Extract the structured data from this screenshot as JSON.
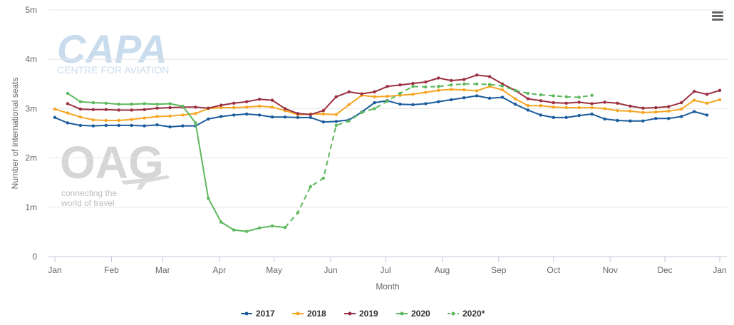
{
  "chart_data": {
    "type": "line",
    "xlabel": "Month",
    "ylabel": "Number of international seats",
    "x_ticks": [
      "Jan",
      "Feb",
      "Mar",
      "Apr",
      "May",
      "Jun",
      "Jul",
      "Aug",
      "Sep",
      "Oct",
      "Nov",
      "Dec",
      "Jan"
    ],
    "y_ticks": [
      "0",
      "1m",
      "2m",
      "3m",
      "4m",
      "5m"
    ],
    "ylim": [
      0,
      5000000
    ],
    "x_unit": "week of year",
    "xlim": [
      1,
      53
    ],
    "grid": "horizontal",
    "legend_position": "bottom-center",
    "series": [
      {
        "name": "2017",
        "color": "#1a5b9c",
        "dashed": false,
        "x": [
          1,
          2,
          3,
          4,
          5,
          6,
          7,
          8,
          9,
          10,
          11,
          12,
          13,
          14,
          15,
          16,
          17,
          18,
          19,
          20,
          21,
          22,
          23,
          24,
          25,
          26,
          27,
          28,
          29,
          30,
          31,
          32,
          33,
          34,
          35,
          36,
          37,
          38,
          39,
          40,
          41,
          42,
          43,
          44,
          45,
          46,
          47,
          48,
          49,
          50,
          51,
          52
        ],
        "values": [
          2820000,
          2710000,
          2660000,
          2650000,
          2660000,
          2660000,
          2660000,
          2650000,
          2670000,
          2630000,
          2650000,
          2650000,
          2790000,
          2840000,
          2870000,
          2890000,
          2870000,
          2830000,
          2830000,
          2820000,
          2820000,
          2730000,
          2740000,
          2770000,
          2930000,
          3120000,
          3160000,
          3090000,
          3080000,
          3100000,
          3140000,
          3180000,
          3220000,
          3260000,
          3210000,
          3230000,
          3090000,
          2970000,
          2870000,
          2820000,
          2820000,
          2860000,
          2890000,
          2790000,
          2760000,
          2750000,
          2750000,
          2800000,
          2800000,
          2840000,
          2940000,
          2870000
        ]
      },
      {
        "name": "2018",
        "color": "#f5a623",
        "dashed": false,
        "x": [
          1,
          2,
          3,
          4,
          5,
          6,
          7,
          8,
          9,
          10,
          11,
          12,
          13,
          14,
          15,
          16,
          17,
          18,
          19,
          20,
          21,
          22,
          23,
          24,
          25,
          26,
          27,
          28,
          29,
          30,
          31,
          32,
          33,
          34,
          35,
          36,
          37,
          38,
          39,
          40,
          41,
          42,
          43,
          44,
          45,
          46,
          47,
          48,
          49,
          50,
          51,
          52,
          53
        ],
        "values": [
          2990000,
          2910000,
          2830000,
          2770000,
          2760000,
          2760000,
          2780000,
          2810000,
          2840000,
          2850000,
          2870000,
          2900000,
          3000000,
          3020000,
          3020000,
          3030000,
          3050000,
          3030000,
          2960000,
          2880000,
          2890000,
          2890000,
          2880000,
          3080000,
          3270000,
          3240000,
          3250000,
          3270000,
          3290000,
          3330000,
          3370000,
          3390000,
          3380000,
          3360000,
          3450000,
          3380000,
          3200000,
          3060000,
          3060000,
          3030000,
          3020000,
          3020000,
          3020000,
          3000000,
          2960000,
          2950000,
          2920000,
          2930000,
          2950000,
          2990000,
          3170000,
          3110000,
          3180000
        ]
      },
      {
        "name": "2019",
        "color": "#9b2f3f",
        "dashed": false,
        "x": [
          2,
          3,
          4,
          5,
          6,
          7,
          8,
          9,
          10,
          11,
          12,
          13,
          14,
          15,
          16,
          17,
          18,
          19,
          20,
          21,
          22,
          23,
          24,
          25,
          26,
          27,
          28,
          29,
          30,
          31,
          32,
          33,
          34,
          35,
          36,
          37,
          38,
          39,
          40,
          41,
          42,
          43,
          44,
          45,
          46,
          47,
          48,
          49,
          50,
          51,
          52,
          53
        ],
        "values": [
          3100000,
          2990000,
          2980000,
          2980000,
          2970000,
          2970000,
          2980000,
          3010000,
          3020000,
          3030000,
          3030000,
          3010000,
          3070000,
          3110000,
          3140000,
          3190000,
          3170000,
          3000000,
          2900000,
          2880000,
          2960000,
          3240000,
          3340000,
          3300000,
          3340000,
          3450000,
          3480000,
          3510000,
          3540000,
          3620000,
          3570000,
          3590000,
          3680000,
          3650000,
          3500000,
          3370000,
          3200000,
          3160000,
          3120000,
          3110000,
          3130000,
          3100000,
          3130000,
          3110000,
          3050000,
          3010000,
          3020000,
          3040000,
          3120000,
          3350000,
          3290000,
          3370000
        ]
      },
      {
        "name": "2020",
        "color": "#5cb85c",
        "dashed": false,
        "x": [
          2,
          3,
          4,
          5,
          6,
          7,
          8,
          9,
          10,
          11,
          12,
          13,
          14,
          15,
          16,
          17,
          18,
          19
        ],
        "values": [
          3310000,
          3140000,
          3120000,
          3110000,
          3090000,
          3090000,
          3100000,
          3090000,
          3100000,
          3050000,
          2710000,
          1180000,
          700000,
          540000,
          510000,
          580000,
          620000,
          590000
        ]
      },
      {
        "name": "2020*",
        "color": "#5cb85c",
        "dashed": true,
        "x": [
          19,
          20,
          21,
          22,
          23,
          24,
          25,
          26,
          27,
          28,
          29,
          30,
          31,
          32,
          33,
          34,
          35,
          36,
          37,
          38,
          39,
          40,
          41,
          42,
          43
        ],
        "values": [
          590000,
          890000,
          1420000,
          1590000,
          2660000,
          2750000,
          2920000,
          3000000,
          3150000,
          3310000,
          3450000,
          3440000,
          3450000,
          3480000,
          3500000,
          3500000,
          3490000,
          3460000,
          3370000,
          3310000,
          3280000,
          3260000,
          3240000,
          3230000,
          3270000
        ]
      }
    ]
  },
  "watermarks": {
    "capa_logo": "CAPA",
    "capa_subtitle": "CENTRE FOR AVIATION",
    "oag_logo": "OAG",
    "oag_tagline_1": "connecting the",
    "oag_tagline_2": "world of travel"
  },
  "menu": {
    "icon": "hamburger-menu-icon"
  }
}
